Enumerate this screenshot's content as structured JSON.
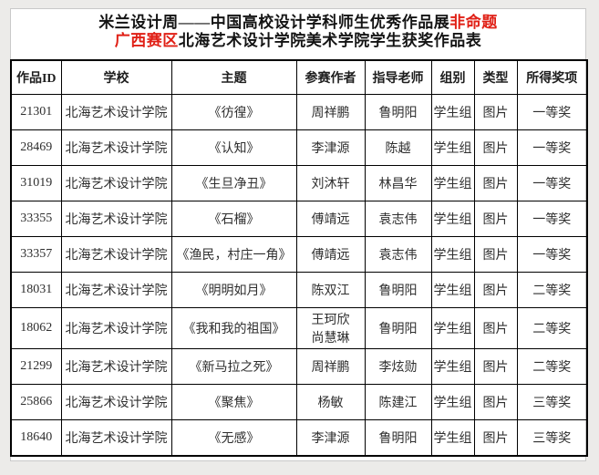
{
  "title": {
    "line1_main": "米兰设计周——中国高校设计学科师生优秀作品展",
    "line1_highlight": "非命题",
    "line2_region": "广西赛区",
    "line2_main": "北海艺术设计学院美术学院学生获奖作品表"
  },
  "colors": {
    "highlight_red": "#e02016",
    "table_border": "#000000",
    "page_background": "#ffffff",
    "canvas_background": "#ecebe9",
    "body_text": "#2f2f2f"
  },
  "table": {
    "columns": [
      {
        "key": "work_id",
        "label": "作品ID"
      },
      {
        "key": "school",
        "label": "学校"
      },
      {
        "key": "theme",
        "label": "主题"
      },
      {
        "key": "author",
        "label": "参赛作者"
      },
      {
        "key": "advisor",
        "label": "指导老师"
      },
      {
        "key": "group",
        "label": "组别"
      },
      {
        "key": "type",
        "label": "类型"
      },
      {
        "key": "award",
        "label": "所得奖项"
      }
    ],
    "rows": [
      {
        "work_id": "21301",
        "school": "北海艺术设计学院",
        "theme": "《彷徨》",
        "author": "周祥鹏",
        "advisor": "鲁明阳",
        "group": "学生组",
        "type": "图片",
        "award": "一等奖"
      },
      {
        "work_id": "28469",
        "school": "北海艺术设计学院",
        "theme": "《认知》",
        "author": "李津源",
        "advisor": "陈越",
        "group": "学生组",
        "type": "图片",
        "award": "一等奖"
      },
      {
        "work_id": "31019",
        "school": "北海艺术设计学院",
        "theme": "《生旦净丑》",
        "author": "刘沐轩",
        "advisor": "林昌华",
        "group": "学生组",
        "type": "图片",
        "award": "一等奖"
      },
      {
        "work_id": "33355",
        "school": "北海艺术设计学院",
        "theme": "《石榴》",
        "author": "傅靖远",
        "advisor": "袁志伟",
        "group": "学生组",
        "type": "图片",
        "award": "一等奖"
      },
      {
        "work_id": "33357",
        "school": "北海艺术设计学院",
        "theme": "《渔民，村庄一角》",
        "author": "傅靖远",
        "advisor": "袁志伟",
        "group": "学生组",
        "type": "图片",
        "award": "一等奖"
      },
      {
        "work_id": "18031",
        "school": "北海艺术设计学院",
        "theme": "《明明如月》",
        "author": "陈双江",
        "advisor": "鲁明阳",
        "group": "学生组",
        "type": "图片",
        "award": "二等奖"
      },
      {
        "work_id": "18062",
        "school": "北海艺术设计学院",
        "theme": "《我和我的祖国》",
        "author": "王珂欣\n尚慧琳",
        "advisor": "鲁明阳",
        "group": "学生组",
        "type": "图片",
        "award": "二等奖"
      },
      {
        "work_id": "21299",
        "school": "北海艺术设计学院",
        "theme": "《新马拉之死》",
        "author": "周祥鹏",
        "advisor": "李炫勋",
        "group": "学生组",
        "type": "图片",
        "award": "二等奖"
      },
      {
        "work_id": "25866",
        "school": "北海艺术设计学院",
        "theme": "《聚焦》",
        "author": "杨敏",
        "advisor": "陈建江",
        "group": "学生组",
        "type": "图片",
        "award": "三等奖"
      },
      {
        "work_id": "18640",
        "school": "北海艺术设计学院",
        "theme": "《无感》",
        "author": "李津源",
        "advisor": "鲁明阳",
        "group": "学生组",
        "type": "图片",
        "award": "三等奖"
      }
    ]
  }
}
